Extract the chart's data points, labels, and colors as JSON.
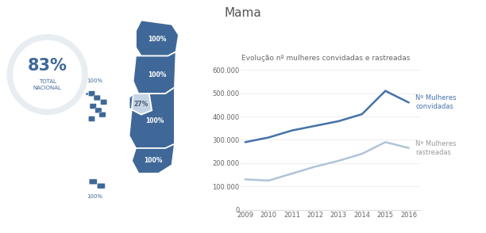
{
  "title": "Mama",
  "subtitle": "Evolução nº mulheres convidadas e rastreadas",
  "years": [
    2009,
    2010,
    2011,
    2012,
    2013,
    2014,
    2015,
    2016
  ],
  "convidadas": [
    290000,
    310000,
    340000,
    360000,
    380000,
    410000,
    510000,
    460000
  ],
  "rastreadas": [
    130000,
    125000,
    155000,
    185000,
    210000,
    240000,
    290000,
    265000
  ],
  "color_convidadas": "#4472a8",
  "color_rastreadas": "#b0c4d8",
  "legend_convidadas": "Nº Mulheres\nconvidadas",
  "legend_rastreadas": "Nº Mulheres\nrastreadas",
  "ylim": [
    0,
    600000
  ],
  "yticks": [
    0,
    100000,
    200000,
    300000,
    400000,
    500000,
    600000
  ],
  "ytick_labels": [
    "0",
    "100.000",
    "200.000",
    "300.000",
    "400.000",
    "500.000",
    "600.000"
  ],
  "background_color": "#ffffff",
  "title_fontsize": 11,
  "subtitle_fontsize": 6.5,
  "axis_fontsize": 6,
  "legend_fontsize": 6,
  "line_width": 1.8,
  "dark_blue": "#3f6898",
  "light_blue": "#c5d5e5",
  "circle_bg": "#e8edf2",
  "text_blue": "#3f6898"
}
